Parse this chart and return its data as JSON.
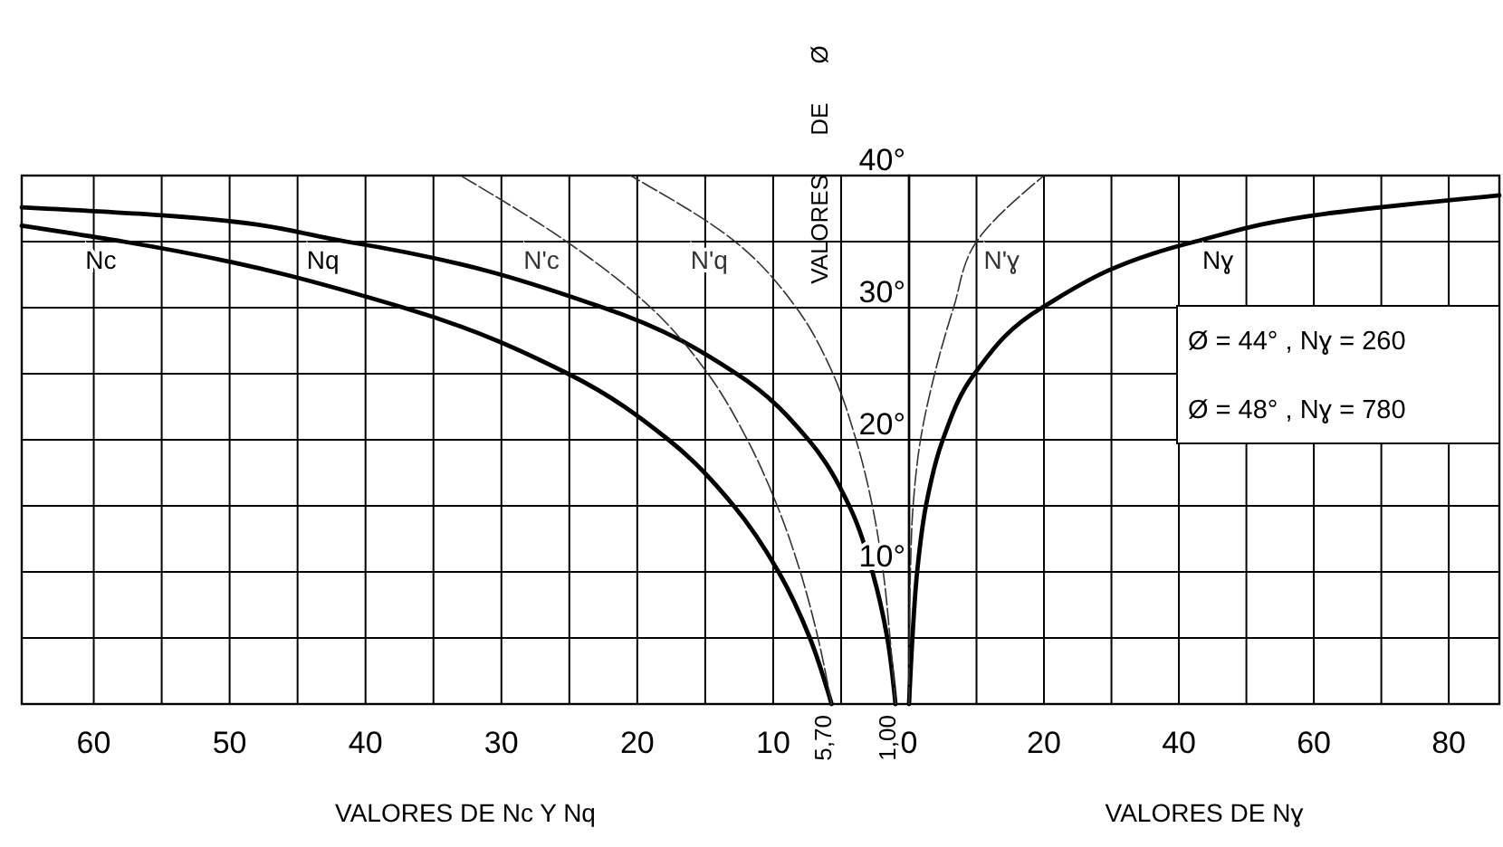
{
  "chart_data": [
    {
      "type": "line",
      "xlabel": "VALORES DE Nc Y Nq",
      "xlim": [
        65.3,
        0
      ],
      "xticks": [
        60,
        {
          "value": 55,
          "label": null
        },
        50,
        {
          "value": 45,
          "label": null
        },
        40,
        {
          "value": 35,
          "label": null
        },
        30,
        {
          "value": 25,
          "label": null
        },
        20,
        {
          "value": 15,
          "label": null
        },
        10,
        {
          "value": 5,
          "label": null
        }
      ],
      "ylim": [
        0,
        40
      ],
      "yticks": [
        {
          "value": 0,
          "label": null
        },
        {
          "value": 5,
          "label": null
        },
        {
          "value": 10,
          "label": null
        },
        {
          "value": 15,
          "label": null
        },
        {
          "value": 20,
          "label": null
        },
        {
          "value": 25,
          "label": null
        },
        {
          "value": 30,
          "label": null
        },
        {
          "value": 35,
          "label": null
        },
        {
          "value": 40,
          "label": null
        }
      ],
      "grid": true,
      "tick_labels": "x",
      "series": [
        {
          "name": "Nc",
          "color": "#000000",
          "line_style": "solid",
          "x": [
            5.7,
            7.3,
            9.6,
            12.9,
            17.7,
            25.1,
            37.2,
            57.8,
            65.3
          ],
          "values": [
            0,
            5,
            10,
            15,
            20,
            25,
            30,
            35,
            36.2
          ]
        },
        {
          "name": "Nq",
          "color": "#000000",
          "line_style": "solid",
          "x": [
            1.0,
            1.6,
            2.7,
            4.4,
            7.4,
            12.7,
            22.5,
            41.4,
            55,
            65.3
          ],
          "values": [
            0,
            5,
            10,
            15,
            20,
            25,
            30,
            35,
            37,
            37.6
          ]
        },
        {
          "name": "N'c",
          "color": "#333333",
          "line_style": "dashed",
          "x": [
            5.7,
            6.7,
            8.0,
            9.7,
            11.9,
            14.8,
            19.0,
            25.2,
            33
          ],
          "values": [
            0,
            5,
            10,
            15,
            20,
            25,
            30,
            35,
            40
          ]
        },
        {
          "name": "N'q",
          "color": "#333333",
          "line_style": "dashed",
          "x": [
            1.0,
            1.4,
            1.9,
            2.7,
            3.9,
            5.6,
            8.3,
            12.8,
            20.5
          ],
          "values": [
            0,
            5,
            10,
            15,
            20,
            25,
            30,
            35,
            40
          ]
        }
      ],
      "annotations": [
        {
          "text": "5,70",
          "x": 5.7,
          "y": 0
        },
        {
          "text": "1,00",
          "x": 1.0,
          "y": 0
        }
      ]
    },
    {
      "type": "line",
      "xlabel": "VALORES DE Nɣ",
      "ylabel": "VALORES DE Ø",
      "xlim": [
        0,
        87.5
      ],
      "xticks": [
        0,
        {
          "value": 10,
          "label": null
        },
        20,
        {
          "value": 30,
          "label": null
        },
        40,
        {
          "value": 50,
          "label": null
        },
        60,
        {
          "value": 70,
          "label": null
        },
        80
      ],
      "ylim": [
        0,
        40
      ],
      "yticks": [
        {
          "value": 0,
          "label": null
        },
        {
          "value": 5,
          "label": null
        },
        {
          "value": 10,
          "label": "10°"
        },
        {
          "value": 15,
          "label": null
        },
        {
          "value": 20,
          "label": "20°"
        },
        {
          "value": 25,
          "label": null
        },
        {
          "value": 30,
          "label": "30°"
        },
        {
          "value": 35,
          "label": null
        },
        {
          "value": 40,
          "label": "40°"
        }
      ],
      "grid": true,
      "series": [
        {
          "name": "Nɣ",
          "color": "#000000",
          "line_style": "solid",
          "x": [
            0,
            0.5,
            1.2,
            2.5,
            5.0,
            9.7,
            19.7,
            42.4,
            61.6,
            87.5
          ],
          "values": [
            0,
            5,
            10,
            15,
            20,
            25,
            30,
            35,
            37.1,
            38.5
          ]
        },
        {
          "name": "N'ɣ",
          "color": "#333333",
          "line_style": "dashed",
          "x": [
            0,
            0.05,
            0.2,
            0.6,
            1.7,
            3.8,
            6.6,
            10,
            20
          ],
          "values": [
            0,
            5,
            10,
            15,
            20,
            25,
            30,
            35,
            40
          ]
        }
      ],
      "annotations": [
        "Ø = 44° , Nɣ = 260",
        "Ø = 48° , Nɣ = 780"
      ]
    }
  ]
}
